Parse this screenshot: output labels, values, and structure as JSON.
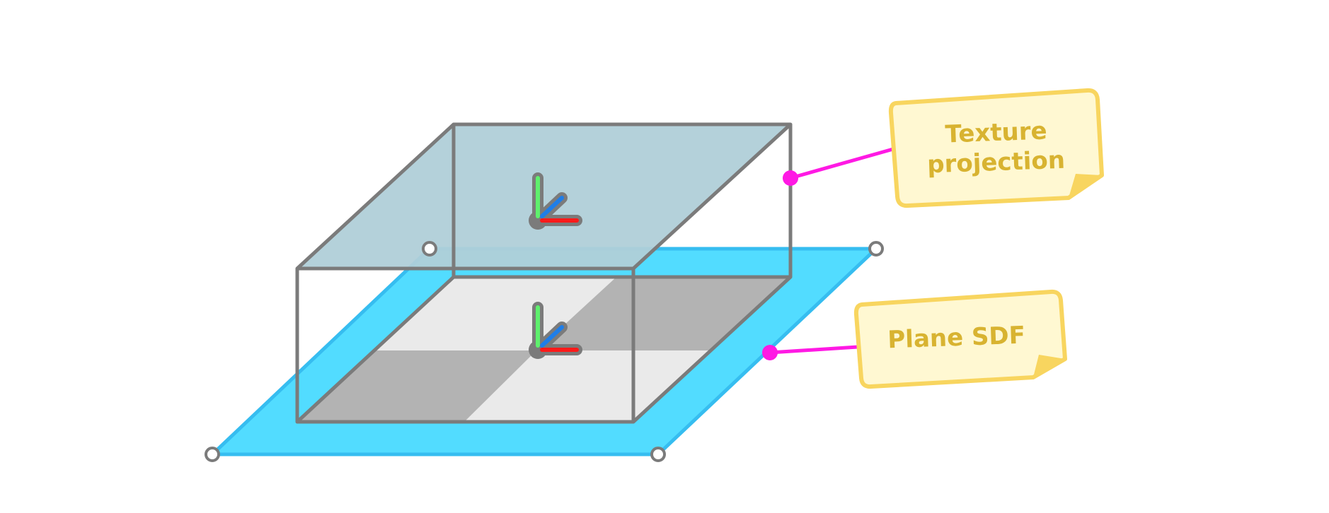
{
  "labels": {
    "texture_projection_line1": "Texture",
    "texture_projection_line2": "projection",
    "plane_sdf": "Plane SDF"
  },
  "colors": {
    "plane_fill": "#52dcff",
    "plane_edge": "#36bdf0",
    "box_edge": "#7b7b7b",
    "box_top_fill": "#b0cfd8",
    "checker_light": "#eaeaea",
    "checker_dark": "#b3b3b3",
    "connector": "#ff19e4",
    "note_fill": "#fff8d2",
    "note_edge": "#f8d55f",
    "note_text": "#d8b331",
    "axis_x": "#ff1a1a",
    "axis_y": "#5ef06d",
    "axis_z": "#1f7ee8",
    "axis_outline": "#7b7b7b"
  },
  "icons": {
    "top_gizmo": "xyz-axes-icon",
    "bottom_gizmo": "xyz-axes-icon",
    "plane_handles": "circle-handle-icon"
  }
}
